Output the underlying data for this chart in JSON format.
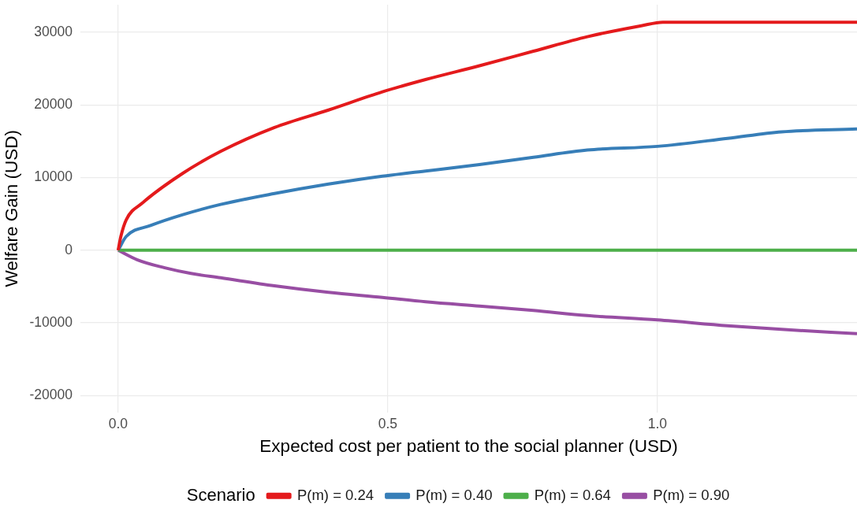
{
  "chart_data": {
    "type": "line",
    "xlabel": "Expected cost per patient to the social planner (USD)",
    "ylabel": "Welfare Gain (USD)",
    "legend_title": "Scenario",
    "legend": "bottom",
    "grid": true,
    "xlim": [
      -0.07,
      1.37
    ],
    "ylim": [
      -22300,
      33800
    ],
    "xticks": [
      {
        "value": 0,
        "label": "0.0"
      },
      {
        "value": 0.5,
        "label": "0.5"
      },
      {
        "value": 1,
        "label": "1.0"
      }
    ],
    "yticks": [
      -20000,
      -10000,
      0,
      10000,
      20000,
      30000
    ],
    "series": [
      {
        "name": "P(m) = 0.24",
        "color": "#e41a1c",
        "x": [
          0,
          0.005,
          0.015,
          0.045,
          0.12,
          0.19,
          0.29,
          0.39,
          0.49,
          0.57,
          0.67,
          0.77,
          0.87,
          0.97,
          1.01,
          1.37
        ],
        "values": [
          0,
          1900,
          4200,
          6500,
          10600,
          13600,
          16900,
          19300,
          21800,
          23500,
          25400,
          27400,
          29400,
          30900,
          31400,
          31400
        ]
      },
      {
        "name": "P(m) = 0.40",
        "color": "#377eb8",
        "x": [
          0,
          0.015,
          0.06,
          0.12,
          0.19,
          0.29,
          0.39,
          0.49,
          0.57,
          0.67,
          0.77,
          0.87,
          1.0,
          1.13,
          1.23,
          1.37
        ],
        "values": [
          0,
          1900,
          3400,
          4900,
          6300,
          7800,
          9100,
          10200,
          10900,
          11800,
          12800,
          13800,
          14300,
          15400,
          16300,
          16700
        ]
      },
      {
        "name": "P(m) = 0.64",
        "color": "#4daf4a",
        "x": [
          0,
          1.37
        ],
        "values": [
          0,
          0
        ]
      },
      {
        "name": "P(m) = 0.90",
        "color": "#984ea3",
        "x": [
          0,
          0.035,
          0.085,
          0.135,
          0.19,
          0.29,
          0.39,
          0.49,
          0.57,
          0.67,
          0.77,
          0.87,
          1.0,
          1.13,
          1.23,
          1.37
        ],
        "values": [
          0,
          -1300,
          -2400,
          -3200,
          -3800,
          -4900,
          -5800,
          -6500,
          -7100,
          -7700,
          -8300,
          -9000,
          -9600,
          -10400,
          -10900,
          -11500
        ]
      }
    ]
  }
}
